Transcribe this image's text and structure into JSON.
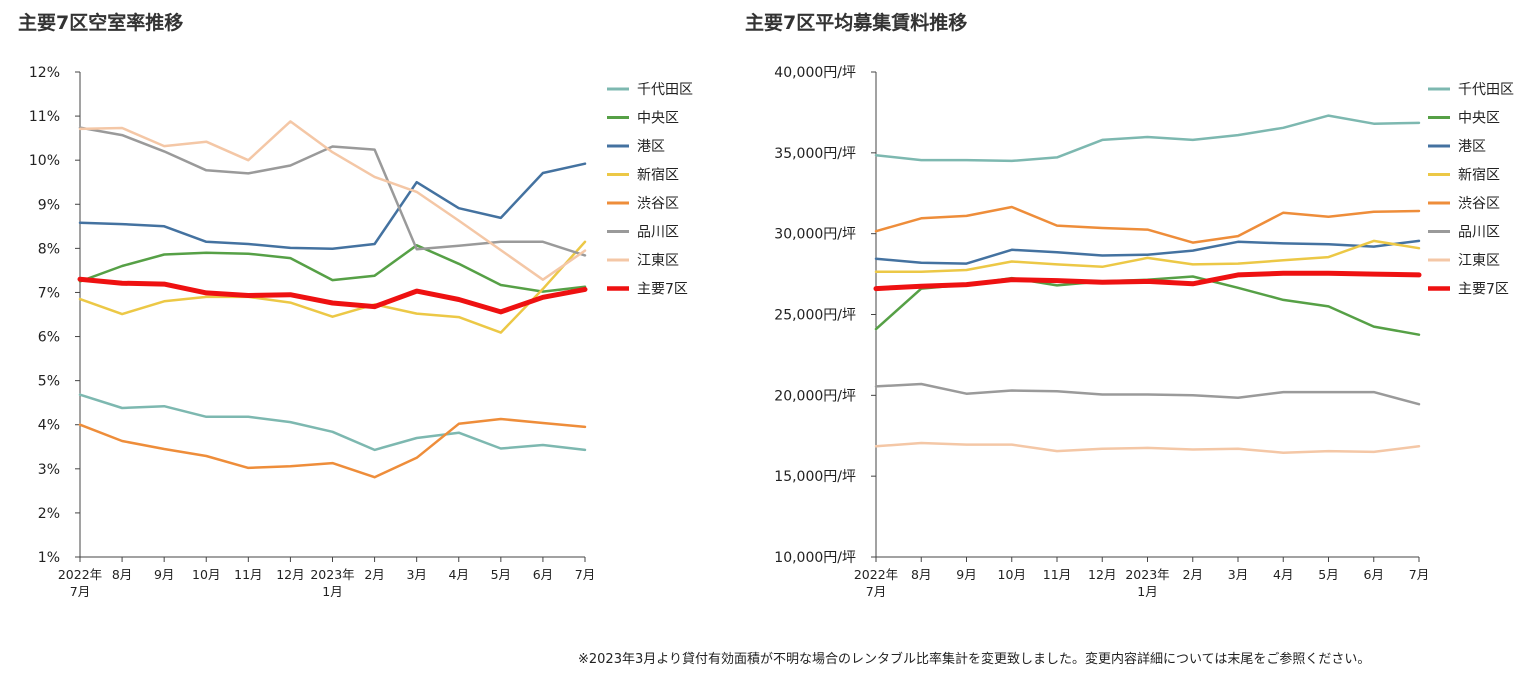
{
  "chart_data": [
    {
      "type": "line",
      "title": "主要7区空室率推移",
      "ylim": [
        1,
        12
      ],
      "yticks": [
        {
          "v": 1,
          "label": "1%"
        },
        {
          "v": 2,
          "label": "2%"
        },
        {
          "v": 3,
          "label": "3%"
        },
        {
          "v": 4,
          "label": "4%"
        },
        {
          "v": 5,
          "label": "5%"
        },
        {
          "v": 6,
          "label": "6%"
        },
        {
          "v": 7,
          "label": "7%"
        },
        {
          "v": 8,
          "label": "8%"
        },
        {
          "v": 9,
          "label": "9%"
        },
        {
          "v": 10,
          "label": "10%"
        },
        {
          "v": 11,
          "label": "11%"
        },
        {
          "v": 12,
          "label": "12%"
        }
      ],
      "categories": [
        [
          "2022年",
          "7月"
        ],
        [
          "8月"
        ],
        [
          "9月"
        ],
        [
          "10月"
        ],
        [
          "11月"
        ],
        [
          "12月"
        ],
        [
          "2023年",
          "1月"
        ],
        [
          "2月"
        ],
        [
          "3月"
        ],
        [
          "4月"
        ],
        [
          "5月"
        ],
        [
          "6月"
        ],
        [
          "7月"
        ]
      ],
      "series": [
        {
          "name": "千代田区",
          "color": "#7db8b0",
          "width": 2.5,
          "values": [
            4.68,
            4.38,
            4.42,
            4.18,
            4.18,
            4.06,
            3.84,
            3.43,
            3.7,
            3.82,
            3.46,
            3.54,
            3.43
          ]
        },
        {
          "name": "中央区",
          "color": "#56a046",
          "width": 2.5,
          "values": [
            7.25,
            7.6,
            7.86,
            7.9,
            7.88,
            7.78,
            7.28,
            7.38,
            8.07,
            7.65,
            7.17,
            7.02,
            7.13
          ]
        },
        {
          "name": "港区",
          "color": "#4472a0",
          "width": 2.5,
          "values": [
            8.58,
            8.55,
            8.5,
            8.15,
            8.1,
            8.01,
            7.99,
            8.1,
            9.5,
            8.91,
            8.69,
            9.71,
            9.92
          ]
        },
        {
          "name": "新宿区",
          "color": "#ecc846",
          "width": 2.5,
          "values": [
            6.85,
            6.51,
            6.8,
            6.9,
            6.9,
            6.77,
            6.45,
            6.73,
            6.52,
            6.44,
            6.09,
            7.08,
            8.15
          ]
        },
        {
          "name": "渋谷区",
          "color": "#ee8d3a",
          "width": 2.5,
          "values": [
            4.0,
            3.63,
            3.45,
            3.29,
            3.02,
            3.06,
            3.13,
            2.81,
            3.25,
            4.02,
            4.13,
            4.04,
            3.95
          ]
        },
        {
          "name": "品川区",
          "color": "#9a9a9a",
          "width": 2.5,
          "values": [
            10.74,
            10.57,
            10.2,
            9.77,
            9.7,
            9.88,
            10.31,
            10.24,
            7.98,
            8.06,
            8.15,
            8.15,
            7.84
          ]
        },
        {
          "name": "江東区",
          "color": "#f4c7a6",
          "width": 2.5,
          "values": [
            10.71,
            10.73,
            10.32,
            10.42,
            10.0,
            10.88,
            10.18,
            9.62,
            9.28,
            8.63,
            7.96,
            7.29,
            7.95
          ]
        },
        {
          "name": "主要7区",
          "color": "#ee1111",
          "width": 5,
          "values": [
            7.3,
            7.21,
            7.19,
            6.99,
            6.93,
            6.95,
            6.76,
            6.68,
            7.03,
            6.84,
            6.56,
            6.89,
            7.07
          ]
        }
      ]
    },
    {
      "type": "line",
      "title": "主要7区平均募集賃料推移",
      "ylim": [
        10000,
        40000
      ],
      "yticks": [
        {
          "v": 10000,
          "label": "10,000円/坪"
        },
        {
          "v": 15000,
          "label": "15,000円/坪"
        },
        {
          "v": 20000,
          "label": "20,000円/坪"
        },
        {
          "v": 25000,
          "label": "25,000円/坪"
        },
        {
          "v": 30000,
          "label": "30,000円/坪"
        },
        {
          "v": 35000,
          "label": "35,000円/坪"
        },
        {
          "v": 40000,
          "label": "40,000円/坪"
        }
      ],
      "categories": [
        [
          "2022年",
          "7月"
        ],
        [
          "8月"
        ],
        [
          "9月"
        ],
        [
          "10月"
        ],
        [
          "11月"
        ],
        [
          "12月"
        ],
        [
          "2023年",
          "1月"
        ],
        [
          "2月"
        ],
        [
          "3月"
        ],
        [
          "4月"
        ],
        [
          "5月"
        ],
        [
          "6月"
        ],
        [
          "7月"
        ]
      ],
      "series": [
        {
          "name": "千代田区",
          "color": "#7db8b0",
          "width": 2.5,
          "values": [
            34850,
            34550,
            34550,
            34500,
            34720,
            35800,
            35980,
            35800,
            36100,
            36550,
            37300,
            36800,
            36850
          ]
        },
        {
          "name": "中央区",
          "color": "#56a046",
          "width": 2.5,
          "values": [
            24100,
            26600,
            26850,
            27250,
            26800,
            27050,
            27150,
            27350,
            26650,
            25900,
            25500,
            24250,
            23750
          ]
        },
        {
          "name": "港区",
          "color": "#4472a0",
          "width": 2.5,
          "values": [
            28450,
            28200,
            28150,
            29000,
            28850,
            28650,
            28700,
            28950,
            29500,
            29400,
            29350,
            29200,
            29550
          ]
        },
        {
          "name": "新宿区",
          "color": "#ecc846",
          "width": 2.5,
          "values": [
            27650,
            27650,
            27750,
            28280,
            28100,
            27950,
            28500,
            28100,
            28150,
            28350,
            28550,
            29550,
            29100
          ]
        },
        {
          "name": "渋谷区",
          "color": "#ee8d3a",
          "width": 2.5,
          "values": [
            30150,
            30950,
            31100,
            31650,
            30500,
            30350,
            30250,
            29450,
            29850,
            31300,
            31050,
            31350,
            31400
          ]
        },
        {
          "name": "品川区",
          "color": "#9a9a9a",
          "width": 2.5,
          "values": [
            20550,
            20700,
            20100,
            20300,
            20250,
            20050,
            20050,
            20000,
            19850,
            20200,
            20200,
            20200,
            19450
          ]
        },
        {
          "name": "江東区",
          "color": "#f4c7a6",
          "width": 2.5,
          "values": [
            16850,
            17050,
            16950,
            16950,
            16550,
            16700,
            16750,
            16650,
            16700,
            16450,
            16550,
            16500,
            16850
          ]
        },
        {
          "name": "主要7区",
          "color": "#ee1111",
          "width": 5,
          "values": [
            26600,
            26750,
            26850,
            27150,
            27100,
            27000,
            27050,
            26900,
            27450,
            27550,
            27550,
            27500,
            27450
          ]
        }
      ]
    }
  ],
  "footnote": "※2023年3月より貸付有効面積が不明な場合のレンタブル比率集計を変更致しました。変更内容詳細については末尾をご参照ください。"
}
